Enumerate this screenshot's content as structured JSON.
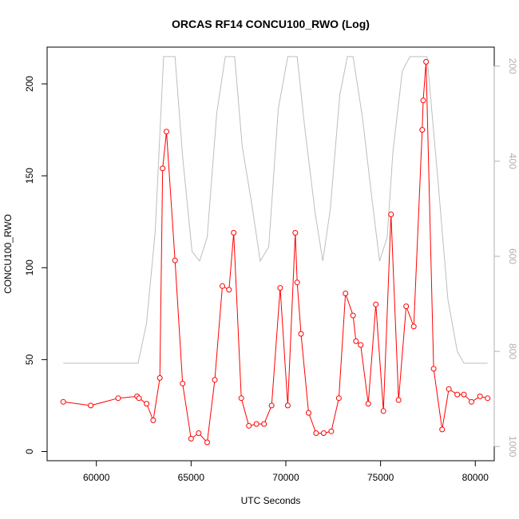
{
  "chart_data": {
    "type": "line",
    "title": "ORCAS RF14 CONCU100_RWO (Log)",
    "xlabel": "UTC Seconds",
    "ylabel": "CONCU100_RWO",
    "xlim": [
      57400,
      81000
    ],
    "ylim": [
      -5,
      220
    ],
    "y2lim": [
      1030,
      160
    ],
    "y2_reversed": true,
    "x_ticks": [
      60000,
      65000,
      70000,
      75000,
      80000
    ],
    "y_ticks": [
      0,
      50,
      100,
      150,
      200
    ],
    "y2_ticks": [
      200,
      400,
      600,
      800,
      1000
    ],
    "grid": false,
    "series": [
      {
        "axis": "left",
        "color": "#ff0000",
        "marker": "open-circle",
        "x": [
          58250,
          59700,
          61150,
          62150,
          62250,
          62650,
          63000,
          63350,
          63500,
          63700,
          64150,
          64550,
          65000,
          65400,
          65850,
          66250,
          66650,
          67000,
          67250,
          67650,
          68050,
          68450,
          68850,
          69250,
          69700,
          70100,
          70500,
          70600,
          70800,
          71200,
          71600,
          72000,
          72400,
          72800,
          73150,
          73550,
          73700,
          73950,
          74350,
          74750,
          75150,
          75550,
          75950,
          76350,
          76750,
          77200,
          77250,
          77400,
          77800,
          78250,
          78600,
          79050,
          79400,
          79800,
          80250,
          80650
        ],
        "y": [
          27,
          25,
          29,
          30,
          29,
          26,
          17,
          40,
          154,
          174,
          104,
          37,
          7,
          10,
          5,
          39,
          90,
          88,
          119,
          29,
          14,
          15,
          15,
          25,
          89,
          25,
          119,
          92,
          64,
          21,
          10,
          10,
          11,
          29,
          86,
          74,
          60,
          58,
          26,
          80,
          22,
          129,
          28,
          79,
          68,
          175,
          191,
          212,
          45,
          12,
          34,
          31,
          31,
          27,
          30,
          29
        ]
      },
      {
        "axis": "right",
        "color": "#bebebe",
        "marker": "none",
        "x": [
          58250,
          62200,
          62650,
          63100,
          63550,
          64150,
          64550,
          65050,
          65450,
          65850,
          66350,
          66800,
          67300,
          67700,
          68200,
          68650,
          69100,
          69600,
          70100,
          70600,
          71000,
          71550,
          71950,
          72350,
          72850,
          73250,
          73550,
          74050,
          74550,
          74950,
          75350,
          75650,
          76150,
          76550,
          76950,
          77450,
          78050,
          78550,
          79050,
          79400,
          80650
        ],
        "y": [
          825,
          825,
          740,
          550,
          180,
          180,
          390,
          590,
          610,
          560,
          300,
          180,
          180,
          370,
          490,
          610,
          580,
          290,
          180,
          180,
          330,
          510,
          610,
          500,
          260,
          180,
          180,
          310,
          480,
          610,
          560,
          380,
          210,
          180,
          180,
          180,
          450,
          690,
          800,
          825,
          825
        ]
      }
    ]
  }
}
